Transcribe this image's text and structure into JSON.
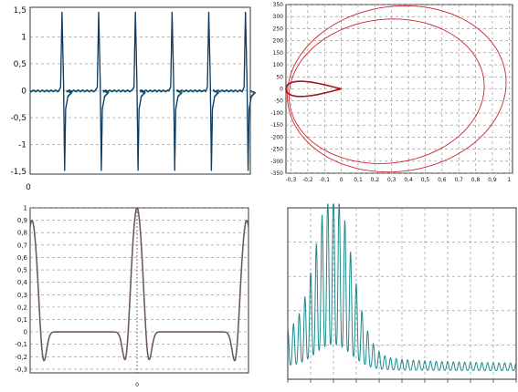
{
  "colors": {
    "teal": "#0e6d80",
    "teal_dark": "#0d3b63",
    "red": "#cc2530",
    "dark_red": "#a3141e",
    "gray_curve": "#5f5a5a",
    "pink_curve": "#b5354a",
    "spectrum": "#1f8a8c"
  },
  "chart_data": [
    {
      "type": "line",
      "name": "periodic-pulse-signal",
      "title": "",
      "xlabel": "",
      "ylabel": "",
      "ylim": [
        -1.55,
        1.55
      ],
      "yticks": [
        1.5,
        1,
        0.5,
        0,
        -0.5,
        -1,
        -1.5
      ],
      "ytick_labels": [
        "1,5",
        "1",
        "0,5",
        "0",
        "-0,5",
        "-1",
        "-1,5"
      ],
      "xtick_labels": [
        "0"
      ],
      "grid": true,
      "periods": 6,
      "spike_peak": 1.5,
      "spike_trough": -1.5,
      "baseline": 0
    },
    {
      "type": "line",
      "name": "phase-portrait",
      "title": "",
      "xlabel": "",
      "ylabel": "",
      "xlim": [
        -0.33,
        1.02
      ],
      "ylim": [
        -350,
        350
      ],
      "xticks": [
        -0.3,
        -0.2,
        -0.1,
        0,
        0.1,
        0.2,
        0.3,
        0.4,
        0.5,
        0.6,
        0.7,
        0.8,
        0.9,
        1
      ],
      "xtick_labels": [
        "-0,3",
        "-0,2",
        "-0,1",
        "0",
        "0,1",
        "0,2",
        "0,3",
        "0,4",
        "0,5",
        "0,6",
        "0,7",
        "0,8",
        "0,9",
        "1"
      ],
      "yticks": [
        350,
        300,
        250,
        200,
        150,
        100,
        50,
        0,
        -50,
        -100,
        -150,
        -200,
        -250,
        -300,
        -350
      ],
      "ytick_labels": [
        "350",
        "300",
        "250",
        "200",
        "150",
        "100",
        "50",
        "0",
        "-50",
        "-100",
        "-150",
        "-200",
        "-250",
        "-300",
        "-350"
      ],
      "grid": true,
      "loops": [
        {
          "x": [
            -0.32,
            -0.3,
            -0.2,
            0,
            0.3,
            0.5,
            0.7,
            0.85,
            0.98,
            0.98,
            0.8,
            0.5,
            0.2,
            -0.1,
            -0.32
          ],
          "y": [
            0,
            100,
            220,
            320,
            348,
            348,
            320,
            250,
            100,
            -50,
            -260,
            -320,
            -300,
            -230,
            0
          ]
        },
        {
          "x": [
            -0.32,
            -0.2,
            0,
            0.3,
            0.5,
            0.7,
            0.85,
            0.85,
            0.7,
            0.45,
            0.2,
            -0.1,
            -0.32
          ],
          "y": [
            0,
            180,
            260,
            290,
            280,
            230,
            100,
            -100,
            -220,
            -290,
            -300,
            -230,
            0
          ]
        },
        {
          "x": [
            -0.33,
            -0.28,
            -0.15,
            0,
            -0.15,
            -0.28,
            -0.33
          ],
          "y": [
            0,
            55,
            20,
            0,
            -20,
            -55,
            0
          ]
        }
      ]
    },
    {
      "type": "line",
      "name": "autocorrelation",
      "title": "",
      "xlabel": "",
      "ylabel": "",
      "ylim": [
        -0.33,
        1.0
      ],
      "yticks": [
        1,
        0.9,
        0.8,
        0.7,
        0.6,
        0.5,
        0.4,
        0.3,
        0.2,
        0.1,
        0,
        -0.1,
        -0.2,
        -0.3
      ],
      "ytick_labels": [
        "1",
        "0,9",
        "0,8",
        "0,7",
        "0,6",
        "0,5",
        "0,4",
        "0,3",
        "0,2",
        "0,1",
        "0",
        "-0,1",
        "-0,2",
        "-0,3"
      ],
      "xtick_labels": [
        "0"
      ],
      "grid": true,
      "center_peak": 1.0,
      "side_peak": 0.9,
      "trough": -0.33,
      "plateau": 0
    },
    {
      "type": "line",
      "name": "spectrum",
      "title": "",
      "xlabel": "",
      "ylabel": "",
      "grid": true,
      "envelope_peak_position": 0.2,
      "comb_count": 40
    }
  ]
}
